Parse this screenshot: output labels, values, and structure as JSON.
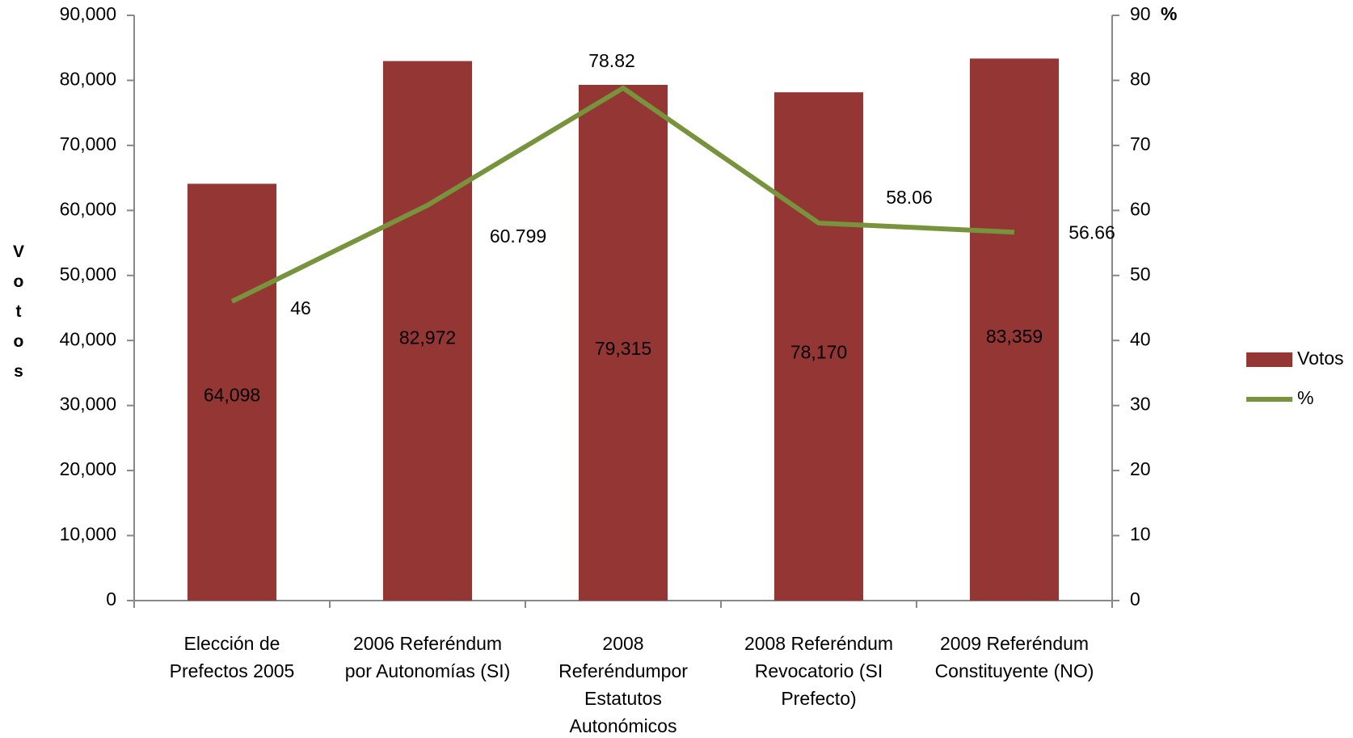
{
  "chart_data": {
    "type": "bar_line",
    "y_label": "Votos",
    "y2_label": "%",
    "categories": [
      "Elección de\nPrefectos 2005",
      "2006 Referéndum\npor Autonomías (SI)",
      "2008\nReferéndumpor\nEstatutos\nAutonómicos",
      "2008 Referéndum\nRevocatorio (SI\nPrefecto)",
      "2009 Referéndum\nConstituyente (NO)"
    ],
    "series": [
      {
        "name": "Votos",
        "type": "bar",
        "color": "#943634",
        "values": [
          64098,
          82972,
          79315,
          78170,
          83359
        ],
        "value_labels": [
          "64,098",
          "82,972",
          "79,315",
          "78,170",
          "83,359"
        ]
      },
      {
        "name": "%",
        "type": "line",
        "axis": "y2",
        "color": "#77933c",
        "values": [
          46,
          60.799,
          78.82,
          58.06,
          56.66
        ]
      }
    ],
    "ylim": [
      0,
      90000
    ],
    "yticks": [
      0,
      {
        "value": 10000,
        "label": "10,000"
      },
      {
        "value": 20000,
        "label": "20,000"
      },
      {
        "value": 30000,
        "label": "30,000"
      },
      {
        "value": 40000,
        "label": "40,000"
      },
      {
        "value": 50000,
        "label": "50,000"
      },
      {
        "value": 60000,
        "label": "60,000"
      },
      {
        "value": 70000,
        "label": "70,000"
      },
      {
        "value": 80000,
        "label": "80,000"
      },
      {
        "value": 90000,
        "label": "90,000"
      }
    ],
    "y2lim": [
      0,
      90
    ],
    "y2ticks": [
      0,
      10,
      20,
      30,
      40,
      50,
      60,
      70,
      80,
      90
    ],
    "legend": "right"
  }
}
